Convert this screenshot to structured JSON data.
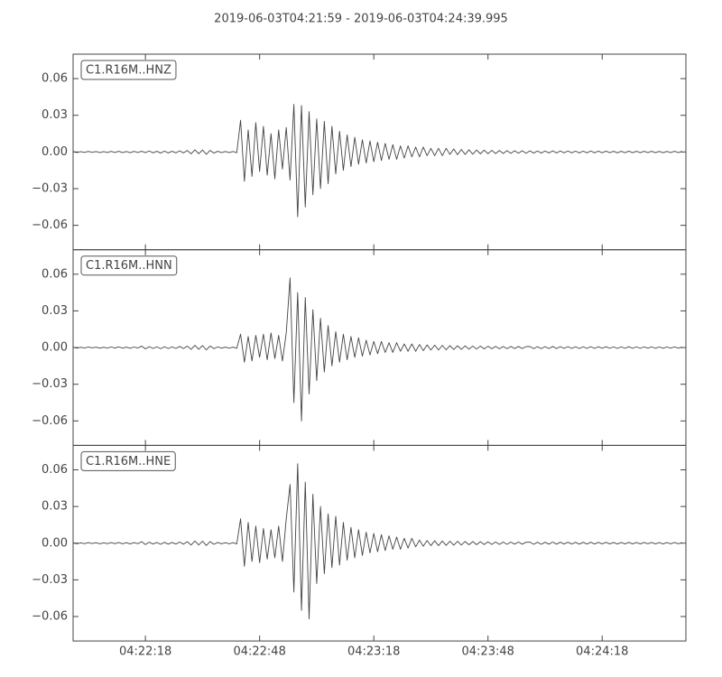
{
  "title": "2019-06-03T04:21:59  -  2019-06-03T04:24:39.995",
  "chart_data": {
    "type": "line",
    "layout": "stacked",
    "xlim": [
      0,
      160.995
    ],
    "xticks": [
      {
        "value": 19,
        "label": "04:22:18"
      },
      {
        "value": 49,
        "label": "04:22:48"
      },
      {
        "value": 79,
        "label": "04:23:18"
      },
      {
        "value": 109,
        "label": "04:23:48"
      },
      {
        "value": 139,
        "label": "04:24:18"
      }
    ],
    "ylim": [
      -0.08,
      0.08
    ],
    "yticks": [
      {
        "value": -0.06,
        "label": "−0.06"
      },
      {
        "value": -0.03,
        "label": "−0.03"
      },
      {
        "value": 0,
        "label": "0.00"
      },
      {
        "value": 0.03,
        "label": "0.03"
      },
      {
        "value": 0.06,
        "label": "0.06"
      }
    ],
    "x": [
      0,
      1,
      2,
      3,
      4,
      5,
      6,
      7,
      8,
      9,
      10,
      11,
      12,
      13,
      14,
      15,
      16,
      17,
      18,
      19,
      20,
      21,
      22,
      23,
      24,
      25,
      26,
      27,
      28,
      29,
      30,
      31,
      32,
      33,
      34,
      35,
      36,
      37,
      38,
      39,
      40,
      41,
      42,
      43,
      44,
      45,
      46,
      47,
      48,
      49,
      50,
      51,
      52,
      53,
      54,
      55,
      56,
      57,
      58,
      59,
      60,
      61,
      62,
      63,
      64,
      65,
      66,
      67,
      68,
      69,
      70,
      71,
      72,
      73,
      74,
      75,
      76,
      77,
      78,
      79,
      80,
      81,
      82,
      83,
      84,
      85,
      86,
      87,
      88,
      89,
      90,
      91,
      92,
      93,
      94,
      95,
      96,
      97,
      98,
      99,
      100,
      101,
      102,
      103,
      104,
      105,
      106,
      107,
      108,
      109,
      110,
      111,
      112,
      113,
      114,
      115,
      116,
      117,
      118,
      119,
      120,
      121,
      122,
      123,
      124,
      125,
      126,
      127,
      128,
      129,
      130,
      131,
      132,
      133,
      134,
      135,
      136,
      137,
      138,
      139,
      140,
      141,
      142,
      143,
      144,
      145,
      146,
      147,
      148,
      149,
      150,
      151,
      152,
      153,
      154,
      155,
      156,
      157,
      158,
      159,
      160
    ],
    "series": [
      {
        "name": "C1.R16M..HNZ",
        "color": "#444444",
        "values": [
          0.0004,
          -0.0005,
          0.0003,
          -0.0004,
          0.0005,
          -0.0003,
          0.0004,
          -0.0005,
          0.0003,
          -0.0004,
          0.0005,
          -0.0004,
          0.0006,
          -0.0005,
          0.0004,
          -0.0006,
          0.0005,
          -0.0004,
          0.0006,
          -0.0005,
          0.0008,
          -0.0007,
          0.0006,
          -0.0009,
          0.0007,
          -0.0008,
          0.0006,
          -0.0007,
          0.0009,
          -0.0008,
          0.0012,
          -0.0015,
          0.0018,
          -0.0014,
          0.0016,
          -0.0019,
          0.0013,
          -0.0009,
          0.0006,
          -0.0005,
          0.0004,
          -0.0005,
          0.0004,
          -0.0006,
          0.026,
          -0.024,
          0.018,
          -0.02,
          0.024,
          -0.016,
          0.021,
          -0.019,
          0.015,
          -0.022,
          0.018,
          -0.014,
          0.02,
          -0.023,
          0.039,
          -0.053,
          0.038,
          -0.045,
          0.033,
          -0.035,
          0.027,
          -0.03,
          0.025,
          -0.026,
          0.021,
          -0.018,
          0.017,
          -0.015,
          0.014,
          -0.012,
          0.012,
          -0.01,
          0.01,
          -0.009,
          0.009,
          -0.008,
          0.008,
          -0.007,
          0.007,
          -0.006,
          0.006,
          -0.006,
          0.005,
          -0.005,
          0.005,
          -0.004,
          0.004,
          -0.004,
          0.004,
          -0.003,
          0.003,
          -0.003,
          0.003,
          -0.003,
          0.003,
          -0.002,
          0.0025,
          -0.0022,
          0.002,
          -0.002,
          0.0018,
          -0.0018,
          0.0016,
          -0.0015,
          0.0015,
          -0.0014,
          0.0013,
          -0.0013,
          0.0012,
          -0.0012,
          0.0011,
          -0.0011,
          0.001,
          -0.001,
          0.001,
          -0.001,
          0.0009,
          -0.0009,
          0.0008,
          -0.0009,
          0.0008,
          -0.0008,
          0.0009,
          -0.0008,
          0.0008,
          -0.0007,
          0.0008,
          -0.0007,
          0.0007,
          -0.0008,
          0.0007,
          -0.0007,
          0.0008,
          -0.0007,
          0.0007,
          -0.0006,
          0.0007,
          -0.0006,
          0.0006,
          -0.0007,
          0.0006,
          -0.0006,
          0.0007,
          -0.0006,
          0.0006,
          -0.0006,
          0.0006,
          -0.0005,
          0.0006,
          -0.0006,
          0.0005,
          -0.0006,
          0.0005,
          -0.0005,
          0.0006,
          -0.0005,
          0.0005
        ]
      },
      {
        "name": "C1.R16M..HNN",
        "color": "#444444",
        "values": [
          0.0004,
          -0.0005,
          0.0003,
          -0.0004,
          0.0005,
          -0.0003,
          0.0004,
          -0.0005,
          0.0003,
          -0.0004,
          0.0005,
          -0.0004,
          0.0006,
          -0.0005,
          0.0004,
          -0.0006,
          0.0005,
          -0.0004,
          0.0012,
          -0.0011,
          0.0008,
          -0.0007,
          0.0006,
          -0.0009,
          0.0007,
          -0.0008,
          0.0006,
          -0.0007,
          0.0009,
          -0.0008,
          0.0012,
          -0.0015,
          0.0018,
          -0.0014,
          0.0016,
          -0.0019,
          0.0013,
          -0.0009,
          0.0006,
          -0.0005,
          0.0004,
          -0.0005,
          0.0004,
          -0.0006,
          0.011,
          -0.012,
          0.009,
          -0.011,
          0.01,
          -0.008,
          0.011,
          -0.01,
          0.012,
          -0.009,
          0.01,
          -0.011,
          0.012,
          0.057,
          -0.045,
          0.045,
          -0.06,
          0.041,
          -0.038,
          0.031,
          -0.027,
          0.024,
          -0.02,
          0.018,
          -0.015,
          0.013,
          -0.012,
          0.011,
          -0.01,
          0.009,
          -0.008,
          0.008,
          -0.007,
          0.006,
          -0.006,
          0.005,
          -0.005,
          0.005,
          -0.004,
          0.004,
          -0.004,
          0.004,
          -0.003,
          0.003,
          -0.003,
          0.003,
          -0.003,
          0.0025,
          -0.0025,
          0.0022,
          -0.002,
          0.002,
          -0.002,
          0.0018,
          -0.0018,
          0.0016,
          -0.0016,
          0.0015,
          -0.0015,
          0.0014,
          -0.0013,
          0.0013,
          -0.0012,
          0.0012,
          -0.0011,
          0.0011,
          -0.001,
          0.001,
          -0.001,
          0.0009,
          -0.0009,
          0.0009,
          -0.0008,
          0.0009,
          -0.0008,
          0.0008,
          0.0009,
          -0.0009,
          0.0008,
          -0.0009,
          0.0008,
          -0.0008,
          0.0009,
          -0.0008,
          0.0008,
          -0.0007,
          0.0008,
          -0.0007,
          0.0007,
          -0.0008,
          0.0007,
          -0.0007,
          0.0008,
          -0.0007,
          0.0007,
          -0.0006,
          0.0007,
          -0.0006,
          0.0006,
          -0.0007,
          0.0006,
          -0.0006,
          0.0007,
          -0.0006,
          0.0006,
          -0.0006,
          0.0006,
          -0.0005,
          0.0006,
          -0.0006,
          0.0005,
          -0.0006,
          0.0005,
          -0.0005,
          0.0006,
          -0.0005,
          0.0005
        ]
      },
      {
        "name": "C1.R16M..HNE",
        "color": "#444444",
        "values": [
          0.0004,
          -0.0005,
          0.0003,
          -0.0004,
          0.0005,
          -0.0003,
          0.0004,
          -0.0005,
          0.0003,
          -0.0004,
          0.0005,
          -0.0004,
          0.0006,
          -0.0005,
          0.0004,
          -0.0006,
          0.0005,
          -0.0004,
          0.0012,
          -0.0011,
          0.0008,
          -0.0007,
          0.0006,
          -0.0009,
          0.0007,
          -0.0008,
          0.0006,
          -0.0007,
          0.0009,
          -0.0008,
          0.0012,
          -0.0015,
          0.0018,
          -0.0014,
          0.0016,
          -0.0019,
          0.0013,
          -0.0009,
          0.0006,
          -0.0005,
          0.0004,
          -0.0005,
          0.0004,
          -0.0006,
          0.02,
          -0.019,
          0.017,
          -0.015,
          0.014,
          -0.016,
          0.012,
          -0.013,
          0.011,
          -0.012,
          0.014,
          -0.015,
          0.02,
          0.048,
          -0.04,
          0.065,
          -0.055,
          0.05,
          -0.062,
          0.04,
          -0.033,
          0.03,
          -0.025,
          0.024,
          -0.02,
          0.022,
          -0.018,
          0.017,
          -0.014,
          0.013,
          -0.012,
          0.011,
          -0.01,
          0.009,
          -0.008,
          0.008,
          -0.007,
          0.007,
          -0.006,
          0.006,
          -0.005,
          0.005,
          -0.005,
          0.004,
          -0.004,
          0.004,
          -0.003,
          0.0025,
          -0.0025,
          0.0022,
          -0.002,
          0.002,
          -0.002,
          0.0018,
          -0.0018,
          0.0016,
          -0.0016,
          0.0015,
          -0.0015,
          0.0014,
          -0.0013,
          0.0013,
          -0.0012,
          0.0012,
          -0.0011,
          0.0011,
          -0.001,
          0.001,
          -0.001,
          0.0009,
          -0.0009,
          0.0009,
          -0.0008,
          0.0009,
          -0.0008,
          0.0008,
          0.0009,
          -0.0009,
          0.0008,
          -0.0009,
          0.0008,
          -0.0008,
          0.0009,
          -0.0008,
          0.0008,
          -0.0007,
          0.0008,
          -0.0007,
          0.0007,
          -0.0008,
          0.0007,
          -0.0007,
          0.0008,
          -0.0007,
          0.0007,
          -0.0006,
          0.0007,
          -0.0006,
          0.0006,
          -0.0007,
          0.0006,
          -0.0006,
          0.0007,
          -0.0006,
          0.0006,
          -0.0006,
          0.0006,
          -0.0005,
          0.0006,
          -0.0006,
          0.0005,
          -0.0006,
          0.0005,
          -0.0005,
          0.0006,
          -0.0005,
          0.0005
        ]
      }
    ]
  }
}
